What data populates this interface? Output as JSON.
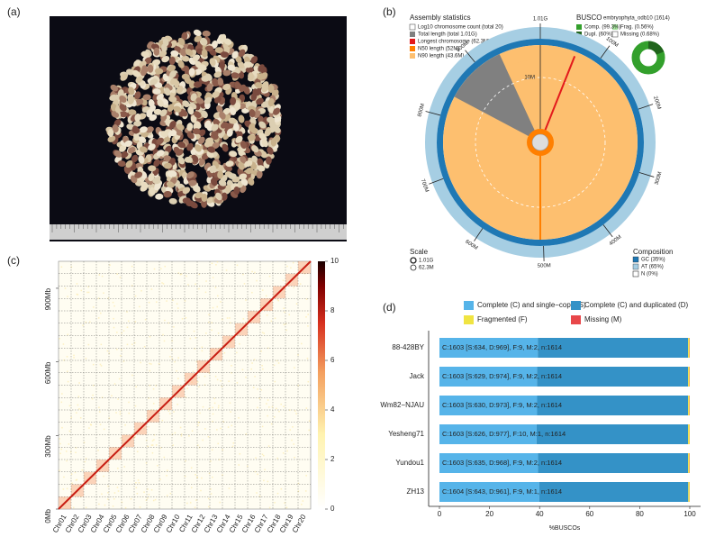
{
  "panel_labels": [
    "(a)",
    "(b)",
    "(c)",
    "(d)"
  ],
  "snail": {
    "title": "Assembly statistics",
    "legend": [
      "Log10 chromosome count (total 20)",
      "Total length (total 1.01G)",
      "Longest chromosome (62.3M)",
      "N50 length (52M)",
      "N90 length (43.6M)"
    ],
    "busco_title": "BUSCO",
    "busco_set": "embryophyta_odb10 (1614)",
    "busco_legend": [
      "Comp. (99.3%)",
      "Frag. (0.56%)",
      "Dupl. (60%)",
      "Missing (0.68%)"
    ],
    "scale_title": "Scale",
    "scale_labels": [
      "1.01G",
      "62.3M"
    ],
    "composition_title": "Composition",
    "composition_legend": [
      "GC (35%)",
      "AT (65%)",
      "N (0%)"
    ],
    "ring_lim": [
      0,
      1010
    ],
    "ring_ticks": [
      {
        "value": 1010,
        "label": "1.01G"
      },
      {
        "value": 100,
        "label": "100M"
      },
      {
        "value": 200,
        "label": "200M"
      },
      {
        "value": 300,
        "label": "300M"
      },
      {
        "value": 400,
        "label": "400M"
      },
      {
        "value": 500,
        "label": "500M"
      },
      {
        "value": 600,
        "label": "600M"
      },
      {
        "value": 700,
        "label": "700M"
      },
      {
        "value": 800,
        "label": "800M"
      },
      {
        "value": 900,
        "label": "900M"
      }
    ],
    "inner_label": "10M"
  },
  "chart_data": [
    {
      "type": "heatmap",
      "categories": [
        "Chr01",
        "Chr02",
        "Chr03",
        "Chr04",
        "Chr05",
        "Chr06",
        "Chr07",
        "Chr08",
        "Chr09",
        "Chr10",
        "Chr11",
        "Chr12",
        "Chr13",
        "Chr14",
        "Chr15",
        "Chr16",
        "Chr17",
        "Chr18",
        "Chr19",
        "Chr20"
      ],
      "ylim": [
        0,
        1010
      ],
      "yticks": [
        {
          "value": 0,
          "label": "0Mb"
        },
        {
          "value": 300,
          "label": "300Mb"
        },
        {
          "value": 600,
          "label": "600Mb"
        },
        {
          "value": 900,
          "label": "900Mb"
        }
      ],
      "colorbar": {
        "lim": [
          0,
          10
        ],
        "ticks": [
          0,
          2,
          4,
          6,
          8,
          10
        ]
      }
    },
    {
      "type": "bar",
      "orientation": "horizontal",
      "stacked": true,
      "categories": [
        "88-428BY",
        "Jack",
        "Wm82−NJAU",
        "Yesheng71",
        "Yundou1",
        "ZH13"
      ],
      "series": [
        {
          "name": "Complete (C) and single−copy (S)",
          "color": "#56b4e9",
          "values": [
            39.28,
            38.97,
            39.03,
            38.79,
            39.34,
            39.84
          ]
        },
        {
          "name": "Complete (C) and duplicated (D)",
          "color": "#3492c7",
          "values": [
            60.04,
            60.35,
            60.29,
            60.53,
            59.98,
            59.54
          ]
        },
        {
          "name": "Fragmented (F)",
          "color": "#f0e442",
          "values": [
            0.56,
            0.56,
            0.56,
            0.62,
            0.56,
            0.56
          ]
        },
        {
          "name": "Missing (M)",
          "color": "#e8474a",
          "values": [
            0.12,
            0.12,
            0.12,
            0.06,
            0.12,
            0.06
          ]
        }
      ],
      "annotations": [
        "C:1603 [S:634, D:969], F:9, M:2, n:1614",
        "C:1603 [S:629, D:974], F:9, M:2, n:1614",
        "C:1603 [S:630, D:973], F:9, M:2, n:1614",
        "C:1603 [S:626, D:977], F:10, M:1, n:1614",
        "C:1603 [S:635, D:968], F:9, M:2, n:1614",
        "C:1604 [S:643, D:961], F:9, M:1, n:1614"
      ],
      "xlim": [
        0,
        100
      ],
      "xticks": [
        0,
        20,
        40,
        60,
        80,
        100
      ],
      "xlabel": "%BUSCOs",
      "legend": "top"
    }
  ]
}
